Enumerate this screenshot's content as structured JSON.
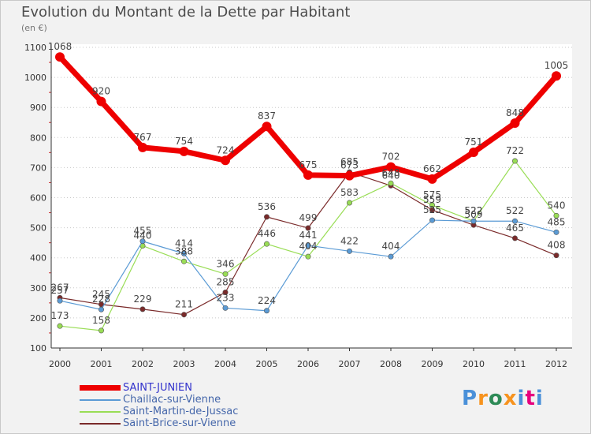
{
  "header": {
    "title": "Evolution du Montant de la Dette par Habitant",
    "subtitle": "(en €)"
  },
  "logo": {
    "text": "Proxiti",
    "colors": [
      "#4a90d9",
      "#f7931e",
      "#2e8b57",
      "#f7931e",
      "#4a90d9",
      "#e6007e",
      "#4a90d9"
    ]
  },
  "chart_data": {
    "type": "line",
    "title": "Evolution du Montant de la Dette par Habitant",
    "subtitle": "(en €)",
    "xlabel": "",
    "ylabel": "",
    "ylim": [
      100,
      1100
    ],
    "yticks": [
      100,
      200,
      300,
      400,
      500,
      600,
      700,
      800,
      900,
      1000,
      1100
    ],
    "grid": "horizontal dotted",
    "legend": "bottom-left",
    "categories": [
      "2000",
      "2001",
      "2002",
      "2003",
      "2004",
      "2005",
      "2006",
      "2007",
      "2008",
      "2009",
      "2010",
      "2011",
      "2012"
    ],
    "series": [
      {
        "name": "SAINT-JUNIEN",
        "color": "#ee0000",
        "values": [
          1068,
          920,
          767,
          754,
          724,
          837,
          675,
          673,
          702,
          662,
          751,
          848,
          1005
        ],
        "labels": [
          "1068",
          "920",
          "767",
          "754",
          "724",
          "837",
          "675",
          "673",
          "702",
          "662",
          "751",
          "848",
          "1005"
        ]
      },
      {
        "name": "Chaillac-sur-Vienne",
        "color": "#5b9bd5",
        "values": [
          257,
          228,
          455,
          414,
          233,
          224,
          441,
          422,
          404,
          525,
          522,
          522,
          485
        ],
        "labels": [
          "257",
          "228",
          "455",
          "414",
          "233",
          "224",
          "441",
          "422",
          "404",
          "525",
          "522",
          "522",
          "485"
        ]
      },
      {
        "name": "Saint-Martin-de-Jussac",
        "color": "#99dd55",
        "values": [
          173,
          158,
          440,
          388,
          346,
          446,
          404,
          583,
          648,
          575,
          522,
          722,
          540
        ],
        "labels": [
          "173",
          "158",
          "440",
          "388",
          "346",
          "446",
          "404",
          "583",
          "648",
          "575",
          "522",
          "722",
          "540"
        ]
      },
      {
        "name": "Saint-Brice-sur-Vienne",
        "color": "#7a2a2a",
        "values": [
          267,
          245,
          229,
          211,
          285,
          536,
          499,
          685,
          640,
          559,
          509,
          465,
          408
        ],
        "labels": [
          "267",
          "245",
          "229",
          "211",
          "285",
          "536",
          "499",
          "685",
          "640",
          "559",
          "509",
          "465",
          "408"
        ]
      }
    ]
  }
}
